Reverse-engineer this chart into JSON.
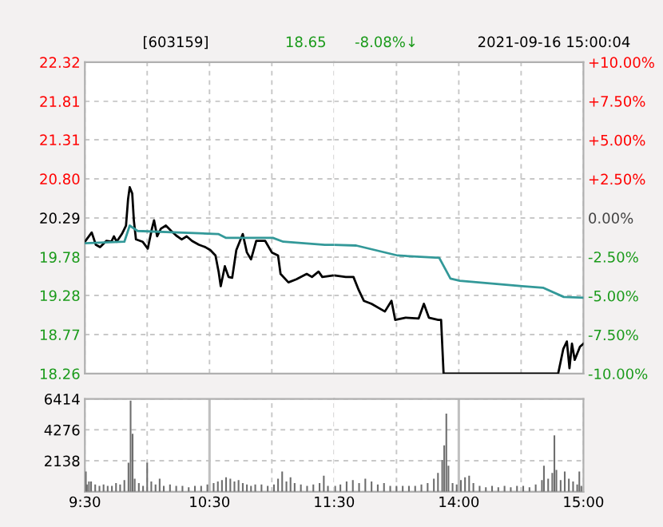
{
  "chart_data": [
    {
      "type": "line",
      "annotations": [
        "[603159]",
        "18.65",
        "-8.08%↓",
        "2021-09-16 15:00:04"
      ],
      "xlim": [
        9.5,
        11.5
      ],
      "xticks": [
        {
          "value": 9.5,
          "label": null
        },
        {
          "value": 10,
          "label": null
        },
        {
          "value": 10.5,
          "label": null
        },
        {
          "value": 11,
          "label": null
        },
        {
          "value": 11.5,
          "label": null
        }
      ],
      "tick_labels": "y",
      "ylim": [
        18.26,
        22.32
      ],
      "yticks": [
        {
          "value": 18.26,
          "label": "18.26"
        },
        {
          "value": 18.77,
          "label": "18.77"
        },
        {
          "value": 19.28,
          "label": "19.28"
        },
        {
          "value": 19.78,
          "label": "19.78"
        },
        {
          "value": 20.29,
          "label": "20.29"
        },
        {
          "value": 20.8,
          "label": "20.80"
        },
        {
          "value": 21.31,
          "label": "21.31"
        },
        {
          "value": 21.81,
          "label": "21.81"
        },
        {
          "value": 22.32,
          "label": "22.32"
        }
      ],
      "grid": true,
      "series": [
        {
          "color": "#000000",
          "x": [
            9.5,
            9.555,
            9.588,
            9.622,
            9.672,
            9.713,
            9.733,
            9.755,
            9.797,
            9.83,
            9.847,
            9.86,
            9.88,
            9.893,
            9.91,
            9.963,
            10.005,
            10.038,
            10.055,
            10.08,
            10.11,
            10.15,
            10.193,
            10.233,
            10.277,
            10.317,
            10.36,
            10.415,
            10.465,
            10.507,
            10.548,
            10.573,
            10.59,
            10.623,
            10.653,
            10.682,
            10.715,
            10.767,
            10.8,
            10.833,
            10.875,
            10.947,
            11.0,
            11.05,
            11.07,
            11.133,
            11.197,
            11.28,
            11.322,
            11.375,
            11.405,
            11.488
          ],
          "values": [
            19.98,
            20.1,
            19.94,
            19.91,
            19.99,
            19.98,
            20.05,
            19.98,
            20.08,
            20.19,
            20.54,
            20.69,
            20.61,
            20.26,
            20.01,
            19.98,
            19.89,
            20.15,
            20.26,
            20.05,
            20.15,
            20.19,
            20.12,
            20.06,
            20.01,
            20.05,
            19.99,
            19.94,
            19.91,
            19.87,
            19.8,
            19.59,
            19.4,
            19.66,
            19.52,
            19.51,
            19.87,
            20.08,
            19.84,
            19.75,
            19.99,
            19.99,
            19.84,
            19.8,
            19.56,
            19.45,
            19.49,
            19.56,
            19.52,
            19.59,
            19.52,
            19.54
          ]
        },
        {
          "color": "#339999",
          "x": [
            9.5,
            9.817,
            9.86,
            9.923,
            10.57,
            10.633,
            11.008,
            11.092,
            11.425,
            11.5
          ],
          "values": [
            19.96,
            19.98,
            20.19,
            20.12,
            20.08,
            20.03,
            20.03,
            19.98,
            19.94,
            19.94
          ]
        }
      ]
    },
    {
      "type": "line",
      "xlim": [
        13,
        15
      ],
      "xticks": [
        {
          "value": 13.5,
          "label": null
        },
        {
          "value": 14,
          "label": null
        },
        {
          "value": 14.5,
          "label": null
        },
        {
          "value": 15,
          "label": null
        }
      ],
      "tick_labels": false,
      "ylim": [
        18.26,
        22.32
      ],
      "yticks": [
        18.26,
        18.77,
        19.28,
        19.78,
        20.29,
        20.8,
        21.31,
        21.81,
        22.32
      ],
      "y2lim": [
        -10,
        10
      ],
      "y2ticks": [
        {
          "value": -10,
          "label": "-10.00%"
        },
        {
          "value": -7.5,
          "label": "-7.50%"
        },
        {
          "value": -5,
          "label": "-5.00%"
        },
        {
          "value": -2.5,
          "label": "-2.50%"
        },
        {
          "value": 0,
          "label": "0.00%"
        },
        {
          "value": 2.5,
          "label": "+2.50%"
        },
        {
          "value": 5,
          "label": "+5.00%"
        },
        {
          "value": 7.5,
          "label": "+7.50%"
        },
        {
          "value": 10,
          "label": "+10.00%"
        }
      ],
      "grid": true,
      "series": [
        {
          "color": "#000000",
          "x": [
            13.0,
            13.093,
            13.155,
            13.197,
            13.238,
            13.3,
            13.407,
            13.46,
            13.49,
            13.573,
            13.678,
            13.72,
            13.76,
            13.835,
            13.858,
            13.878,
            14.797,
            14.838,
            14.867,
            14.888,
            14.908,
            14.93,
            14.972,
            15
          ],
          "values": [
            19.54,
            19.52,
            19.52,
            19.35,
            19.21,
            19.17,
            19.07,
            19.21,
            18.96,
            18.99,
            18.98,
            19.17,
            18.99,
            18.96,
            18.96,
            18.26,
            18.26,
            18.58,
            18.68,
            18.33,
            18.65,
            18.44,
            18.61,
            18.65
          ]
        },
        {
          "color": "#339999",
          "x": [
            13.0,
            13.177,
            13.51,
            13.843,
            13.933,
            14.008,
            14.508,
            14.675,
            14.842,
            15
          ],
          "values": [
            19.94,
            19.93,
            19.8,
            19.77,
            19.5,
            19.47,
            19.4,
            19.38,
            19.26,
            19.25
          ]
        }
      ]
    },
    {
      "type": "bar",
      "xlim": [
        9.5,
        11.5
      ],
      "xticks": [
        {
          "value": 9.5,
          "label": "9:30"
        },
        {
          "value": 10,
          "label": null
        },
        {
          "value": 10.5,
          "label": "10:30"
        },
        {
          "value": 11,
          "label": null
        },
        {
          "value": 11.5,
          "label": "11:30"
        }
      ],
      "ylim": [
        0,
        6414
      ],
      "yticks": [
        {
          "value": 0,
          "label": null
        },
        {
          "value": 2138,
          "label": "2138"
        },
        {
          "value": 4276,
          "label": "4276"
        },
        {
          "value": 6414,
          "label": "6414"
        }
      ],
      "grid": true,
      "ref_lines": [
        {
          "axis": "x",
          "value": 10.5,
          "color": "#c0c0c0",
          "line_style": "solid"
        }
      ],
      "series": [
        {
          "color": "#6e6e6e",
          "x": [
            9.508,
            9.517,
            9.533,
            9.55,
            9.583,
            9.617,
            9.65,
            9.683,
            9.717,
            9.75,
            9.783,
            9.817,
            9.85,
            9.867,
            9.883,
            9.9,
            9.933,
            9.967,
            10.0,
            10.033,
            10.067,
            10.1,
            10.133,
            10.183,
            10.233,
            10.283,
            10.333,
            10.383,
            10.433,
            10.483,
            10.533,
            10.567,
            10.6,
            10.633,
            10.667,
            10.7,
            10.733,
            10.767,
            10.8,
            10.833,
            10.867,
            10.917,
            10.967,
            11.017,
            11.05,
            11.083,
            11.117,
            11.15,
            11.183,
            11.233,
            11.283,
            11.333,
            11.383,
            11.417,
            11.45
          ],
          "values": [
            1400,
            500,
            700,
            700,
            500,
            400,
            500,
            400,
            400,
            600,
            500,
            800,
            2000,
            6300,
            4000,
            900,
            600,
            400,
            2000,
            700,
            500,
            900,
            400,
            500,
            400,
            400,
            300,
            400,
            400,
            500,
            600,
            700,
            800,
            1000,
            900,
            700,
            800,
            600,
            500,
            400,
            500,
            500,
            400,
            500,
            900,
            1400,
            700,
            1000,
            600,
            500,
            400,
            500,
            600,
            1100,
            400
          ]
        }
      ]
    },
    {
      "type": "bar",
      "xlim": [
        13,
        15
      ],
      "xticks": [
        {
          "value": 13.5,
          "label": null
        },
        {
          "value": 14,
          "label": "14:00"
        },
        {
          "value": 14.5,
          "label": null
        },
        {
          "value": 15,
          "label": "15:00"
        }
      ],
      "tick_labels": "x",
      "ylim": [
        0,
        6414
      ],
      "yticks": [
        0,
        2138,
        4276,
        6414
      ],
      "grid": true,
      "ref_lines": [
        {
          "axis": "x",
          "value": 14,
          "color": "#c0c0c0",
          "line_style": "solid"
        }
      ],
      "series": [
        {
          "color": "#6e6e6e",
          "x": [
            13.008,
            13.05,
            13.1,
            13.15,
            13.2,
            13.25,
            13.3,
            13.35,
            13.4,
            13.45,
            13.5,
            13.55,
            13.6,
            13.65,
            13.7,
            13.75,
            13.8,
            13.833,
            13.867,
            13.883,
            13.9,
            13.917,
            13.95,
            13.983,
            14.017,
            14.05,
            14.083,
            14.117,
            14.167,
            14.217,
            14.267,
            14.317,
            14.367,
            14.417,
            14.467,
            14.517,
            14.567,
            14.617,
            14.667,
            14.683,
            14.717,
            14.75,
            14.767,
            14.783,
            14.817,
            14.85,
            14.883,
            14.917,
            14.95,
            14.967,
            14.983
          ],
          "values": [
            400,
            500,
            700,
            800,
            600,
            900,
            700,
            500,
            600,
            400,
            400,
            400,
            400,
            400,
            500,
            600,
            900,
            1300,
            2200,
            3200,
            5400,
            1800,
            600,
            500,
            800,
            1000,
            1100,
            600,
            400,
            300,
            400,
            300,
            400,
            300,
            400,
            400,
            300,
            500,
            800,
            1800,
            900,
            1300,
            3900,
            1500,
            800,
            1400,
            900,
            700,
            500,
            1400,
            400
          ]
        }
      ]
    }
  ]
}
